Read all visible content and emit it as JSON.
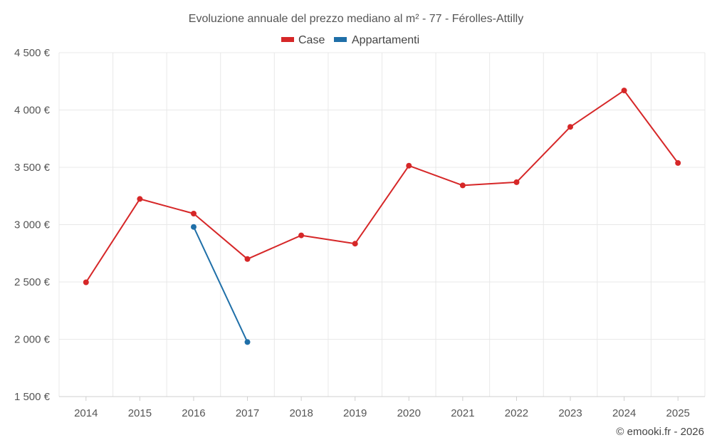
{
  "chart_data": {
    "type": "line",
    "title": "Evoluzione annuale del prezzo mediano al m² - 77 - Férolles-Attilly",
    "categories": [
      "2014",
      "2015",
      "2016",
      "2017",
      "2018",
      "2019",
      "2020",
      "2021",
      "2022",
      "2023",
      "2024",
      "2025"
    ],
    "y_ticks": [
      1500,
      2000,
      2500,
      3000,
      3500,
      4000,
      4500
    ],
    "y_tick_labels": [
      "1 500 €",
      "2 000 €",
      "2 500 €",
      "3 000 €",
      "3 500 €",
      "4 000 €",
      "4 500 €"
    ],
    "ylim": [
      1500,
      4500
    ],
    "grid": true,
    "legend_position": "top-center",
    "series": [
      {
        "name": "Case",
        "color": "#d62728",
        "values": [
          2497,
          3224,
          3096,
          2700,
          2906,
          2834,
          3514,
          3342,
          3370,
          3853,
          4170,
          3538
        ]
      },
      {
        "name": "Appartamenti",
        "color": "#1f6fa8",
        "values": [
          null,
          null,
          2980,
          1976,
          null,
          null,
          null,
          null,
          null,
          null,
          null,
          null
        ]
      }
    ]
  },
  "credit": "© emooki.fr - 2026"
}
